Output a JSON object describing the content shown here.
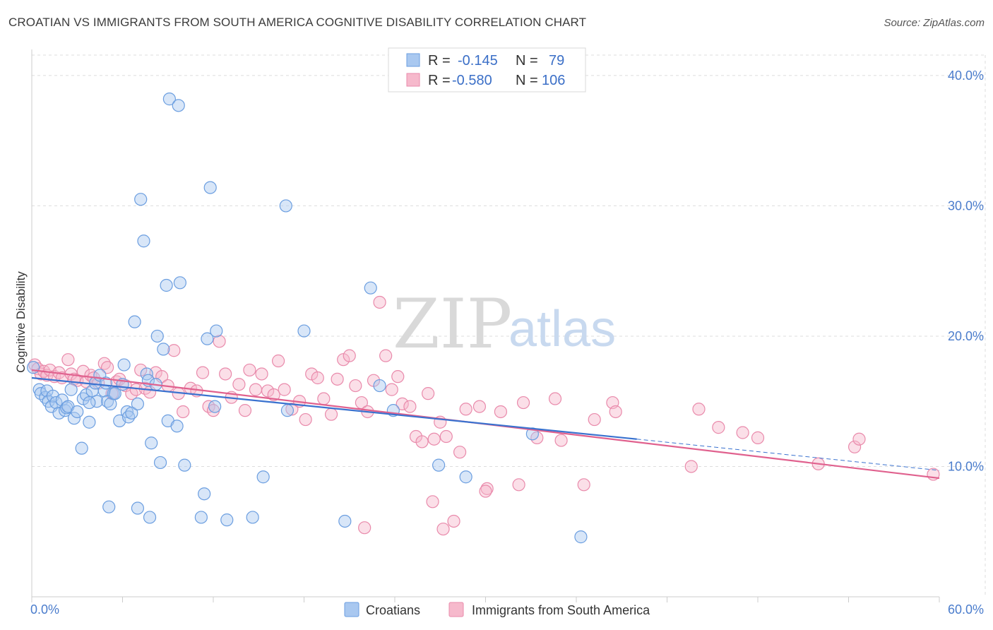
{
  "title": "CROATIAN VS IMMIGRANTS FROM SOUTH AMERICA COGNITIVE DISABILITY CORRELATION CHART",
  "source": "Source: ZipAtlas.com",
  "watermark": {
    "zip": "ZIP",
    "atlas": "atlas"
  },
  "colors": {
    "croatians_fill": "#a9c8f0",
    "croatians_stroke": "#6b9ee0",
    "croatians_line": "#3a72cf",
    "immigrants_fill": "#f6b9cc",
    "immigrants_stroke": "#e98aab",
    "immigrants_line": "#e0618e",
    "axis_label": "#4a7ccc",
    "grid": "#dddddd"
  },
  "legend": {
    "rows": [
      {
        "r_label": "R =",
        "r_value": "-0.145",
        "n_label": "N =",
        "n_value": "79"
      },
      {
        "r_label": "R =",
        "r_value": "-0.580",
        "n_label": "N =",
        "n_value": "106"
      }
    ]
  },
  "bottom_legend": [
    "Croatians",
    "Immigrants from South America"
  ],
  "chart_data": {
    "type": "scatter",
    "title": "CROATIAN VS IMMIGRANTS FROM SOUTH AMERICA COGNITIVE DISABILITY CORRELATION CHART",
    "xlabel": "",
    "ylabel": "Cognitive Disability",
    "xlim": [
      0,
      60
    ],
    "ylim": [
      0,
      42
    ],
    "x_tick_labels": [
      "0.0%",
      "60.0%"
    ],
    "y_ticks": [
      10,
      20,
      30,
      40
    ],
    "y_tick_labels": [
      "10.0%",
      "20.0%",
      "30.0%",
      "40.0%"
    ],
    "grid": true,
    "legend_position": "top-center",
    "series": [
      {
        "name": "Croatians",
        "r": -0.145,
        "n": 79,
        "trend": {
          "x0": 0,
          "y0": 16.8,
          "x1": 40,
          "y1": 12.1,
          "dashed_to_x": 60,
          "dashed_to_y": 9.7
        },
        "points": [
          [
            0.1,
            17.6
          ],
          [
            0.5,
            15.9
          ],
          [
            0.6,
            15.6
          ],
          [
            0.9,
            15.3
          ],
          [
            1.0,
            15.8
          ],
          [
            1.1,
            15.0
          ],
          [
            1.3,
            14.6
          ],
          [
            1.4,
            15.4
          ],
          [
            1.6,
            14.9
          ],
          [
            1.8,
            14.1
          ],
          [
            2.0,
            15.1
          ],
          [
            2.2,
            14.3
          ],
          [
            2.3,
            14.5
          ],
          [
            2.4,
            14.6
          ],
          [
            2.6,
            15.9
          ],
          [
            2.8,
            13.7
          ],
          [
            3.0,
            14.2
          ],
          [
            3.3,
            11.4
          ],
          [
            3.4,
            15.2
          ],
          [
            3.6,
            15.5
          ],
          [
            3.8,
            13.4
          ],
          [
            4.0,
            15.8
          ],
          [
            4.2,
            16.4
          ],
          [
            4.3,
            15.0
          ],
          [
            4.5,
            17.0
          ],
          [
            4.8,
            15.8
          ],
          [
            4.9,
            16.4
          ],
          [
            5.0,
            15.0
          ],
          [
            5.2,
            14.8
          ],
          [
            5.4,
            15.6
          ],
          [
            5.5,
            15.6
          ],
          [
            5.8,
            13.5
          ],
          [
            6.0,
            16.3
          ],
          [
            6.1,
            17.8
          ],
          [
            6.3,
            14.2
          ],
          [
            6.4,
            13.8
          ],
          [
            6.6,
            14.1
          ],
          [
            6.8,
            21.1
          ],
          [
            7.0,
            14.8
          ],
          [
            7.2,
            30.5
          ],
          [
            7.4,
            27.3
          ],
          [
            7.6,
            17.1
          ],
          [
            7.7,
            16.6
          ],
          [
            7.9,
            11.8
          ],
          [
            8.2,
            16.3
          ],
          [
            8.3,
            20.0
          ],
          [
            8.5,
            10.3
          ],
          [
            8.7,
            19.0
          ],
          [
            8.9,
            23.9
          ],
          [
            9.0,
            13.5
          ],
          [
            9.1,
            38.2
          ],
          [
            9.6,
            13.1
          ],
          [
            9.7,
            37.7
          ],
          [
            9.8,
            24.1
          ],
          [
            10.1,
            10.1
          ],
          [
            11.2,
            6.1
          ],
          [
            11.4,
            7.9
          ],
          [
            11.6,
            19.8
          ],
          [
            11.8,
            31.4
          ],
          [
            12.1,
            14.6
          ],
          [
            12.2,
            20.4
          ],
          [
            12.9,
            5.9
          ],
          [
            14.6,
            6.1
          ],
          [
            15.3,
            9.2
          ],
          [
            16.9,
            14.3
          ],
          [
            16.8,
            30.0
          ],
          [
            18.0,
            20.4
          ],
          [
            20.7,
            5.8
          ],
          [
            22.4,
            23.7
          ],
          [
            23.0,
            16.2
          ],
          [
            23.9,
            14.3
          ],
          [
            26.9,
            10.1
          ],
          [
            28.7,
            9.2
          ],
          [
            33.1,
            12.5
          ],
          [
            36.3,
            4.6
          ],
          [
            7.0,
            6.8
          ],
          [
            7.8,
            6.1
          ],
          [
            5.1,
            6.9
          ],
          [
            3.8,
            14.9
          ]
        ]
      },
      {
        "name": "Immigrants from South America",
        "r": -0.58,
        "n": 106,
        "trend": {
          "x0": 0,
          "y0": 17.4,
          "x1": 60,
          "y1": 9.1
        },
        "points": [
          [
            0.2,
            17.8
          ],
          [
            0.4,
            17.5
          ],
          [
            0.6,
            17.1
          ],
          [
            0.8,
            17.3
          ],
          [
            1.0,
            17.0
          ],
          [
            1.2,
            17.4
          ],
          [
            1.5,
            16.9
          ],
          [
            1.8,
            17.2
          ],
          [
            2.0,
            16.8
          ],
          [
            2.4,
            18.2
          ],
          [
            2.6,
            17.1
          ],
          [
            2.8,
            16.7
          ],
          [
            3.0,
            16.6
          ],
          [
            3.4,
            17.3
          ],
          [
            3.6,
            16.5
          ],
          [
            3.9,
            17.0
          ],
          [
            4.1,
            16.8
          ],
          [
            4.4,
            16.4
          ],
          [
            4.8,
            17.9
          ],
          [
            5.0,
            17.6
          ],
          [
            5.3,
            15.6
          ],
          [
            5.6,
            16.5
          ],
          [
            5.8,
            16.7
          ],
          [
            6.2,
            16.2
          ],
          [
            6.6,
            15.6
          ],
          [
            6.9,
            15.9
          ],
          [
            7.2,
            17.4
          ],
          [
            7.5,
            16.0
          ],
          [
            7.8,
            15.7
          ],
          [
            8.2,
            17.2
          ],
          [
            8.6,
            16.9
          ],
          [
            9.0,
            16.2
          ],
          [
            9.4,
            18.9
          ],
          [
            9.7,
            15.6
          ],
          [
            10.0,
            14.2
          ],
          [
            10.5,
            16.0
          ],
          [
            10.9,
            15.8
          ],
          [
            11.3,
            17.2
          ],
          [
            11.7,
            14.6
          ],
          [
            12.0,
            14.3
          ],
          [
            12.4,
            19.6
          ],
          [
            12.8,
            17.1
          ],
          [
            13.2,
            15.3
          ],
          [
            13.7,
            16.3
          ],
          [
            14.1,
            14.3
          ],
          [
            14.4,
            17.4
          ],
          [
            14.8,
            15.9
          ],
          [
            15.2,
            17.1
          ],
          [
            15.6,
            15.8
          ],
          [
            16.0,
            15.5
          ],
          [
            16.3,
            18.1
          ],
          [
            16.7,
            15.9
          ],
          [
            17.2,
            14.4
          ],
          [
            17.7,
            15.0
          ],
          [
            18.1,
            13.6
          ],
          [
            18.5,
            17.1
          ],
          [
            18.9,
            16.8
          ],
          [
            19.3,
            15.2
          ],
          [
            19.8,
            14.0
          ],
          [
            20.2,
            16.7
          ],
          [
            20.6,
            18.2
          ],
          [
            21.0,
            18.5
          ],
          [
            21.4,
            16.2
          ],
          [
            21.8,
            14.9
          ],
          [
            22.2,
            14.2
          ],
          [
            22.6,
            16.6
          ],
          [
            23.0,
            22.6
          ],
          [
            23.4,
            18.5
          ],
          [
            23.8,
            15.9
          ],
          [
            24.2,
            16.9
          ],
          [
            24.5,
            14.8
          ],
          [
            25.0,
            14.6
          ],
          [
            25.4,
            12.3
          ],
          [
            25.8,
            11.9
          ],
          [
            26.2,
            15.6
          ],
          [
            26.6,
            12.1
          ],
          [
            27.0,
            13.4
          ],
          [
            27.4,
            12.3
          ],
          [
            27.9,
            5.8
          ],
          [
            28.3,
            11.1
          ],
          [
            28.7,
            14.4
          ],
          [
            29.6,
            14.6
          ],
          [
            30.1,
            8.3
          ],
          [
            31.0,
            14.2
          ],
          [
            32.2,
            8.6
          ],
          [
            32.5,
            14.9
          ],
          [
            33.4,
            12.2
          ],
          [
            34.6,
            15.2
          ],
          [
            35.0,
            12.0
          ],
          [
            36.5,
            8.6
          ],
          [
            37.2,
            13.6
          ],
          [
            38.4,
            14.9
          ],
          [
            38.6,
            14.2
          ],
          [
            43.6,
            10.0
          ],
          [
            44.1,
            14.4
          ],
          [
            45.4,
            13.0
          ],
          [
            47.0,
            12.6
          ],
          [
            48.0,
            12.2
          ],
          [
            52.0,
            10.2
          ],
          [
            54.4,
            11.5
          ],
          [
            54.7,
            12.1
          ],
          [
            59.6,
            9.4
          ],
          [
            22.0,
            5.3
          ],
          [
            26.5,
            7.3
          ],
          [
            27.2,
            5.2
          ],
          [
            30.0,
            8.1
          ]
        ]
      }
    ]
  }
}
